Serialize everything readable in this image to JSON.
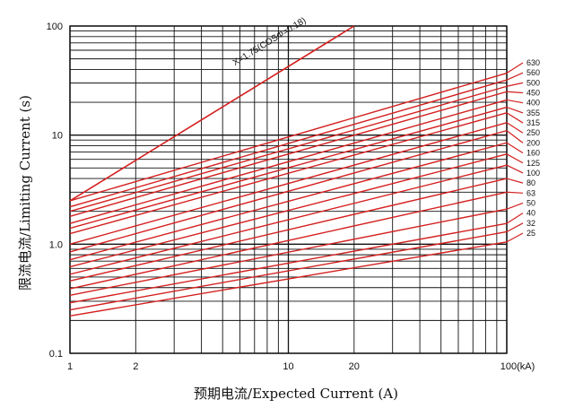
{
  "chart_data": {
    "type": "line",
    "title": "",
    "xlabel": "预期电流/Expected Current (A)",
    "ylabel": "限流电流/Limiting Current (s)",
    "xscale": "log",
    "yscale": "log",
    "xlim": [
      1,
      100
    ],
    "ylim": [
      0.1,
      100
    ],
    "x_tick_labels": [
      "1",
      "2",
      "10",
      "20",
      "100(kA)"
    ],
    "y_tick_labels": [
      "0.1",
      "1.0",
      "10",
      "100"
    ],
    "grid": true,
    "annotation": "X=1.75(COSΦ=0.18)",
    "envelope": {
      "name": "X=1.75(COSΦ=0.18)",
      "x": [
        1,
        20
      ],
      "y": [
        2.5,
        100
      ]
    },
    "series": [
      {
        "name": "630",
        "x": [
          1,
          100
        ],
        "y": [
          2.5,
          37
        ]
      },
      {
        "name": "560",
        "x": [
          1,
          100
        ],
        "y": [
          2.2,
          32
        ]
      },
      {
        "name": "500",
        "x": [
          1,
          100
        ],
        "y": [
          2.0,
          28
        ]
      },
      {
        "name": "450",
        "x": [
          1,
          100
        ],
        "y": [
          1.8,
          25
        ]
      },
      {
        "name": "400",
        "x": [
          1,
          100
        ],
        "y": [
          1.55,
          21
        ]
      },
      {
        "name": "355",
        "x": [
          1,
          100
        ],
        "y": [
          1.4,
          18
        ]
      },
      {
        "name": "315",
        "x": [
          1,
          100
        ],
        "y": [
          1.25,
          16
        ]
      },
      {
        "name": "250",
        "x": [
          1,
          100
        ],
        "y": [
          1.0,
          13
        ]
      },
      {
        "name": "200",
        "x": [
          1,
          100
        ],
        "y": [
          0.85,
          11
        ]
      },
      {
        "name": "160",
        "x": [
          1,
          100
        ],
        "y": [
          0.72,
          8.5
        ]
      },
      {
        "name": "125",
        "x": [
          1,
          100
        ],
        "y": [
          0.62,
          6.7
        ]
      },
      {
        "name": "100",
        "x": [
          1,
          100
        ],
        "y": [
          0.53,
          5.3
        ]
      },
      {
        "name": "80",
        "x": [
          1,
          100
        ],
        "y": [
          0.46,
          4.0
        ]
      },
      {
        "name": "63",
        "x": [
          1,
          100
        ],
        "y": [
          0.39,
          3.0
        ]
      },
      {
        "name": "50",
        "x": [
          1,
          100
        ],
        "y": [
          0.34,
          2.1
        ]
      },
      {
        "name": "40",
        "x": [
          1,
          100
        ],
        "y": [
          0.29,
          1.55
        ]
      },
      {
        "name": "32",
        "x": [
          1,
          100
        ],
        "y": [
          0.25,
          1.3
        ]
      },
      {
        "name": "25",
        "x": [
          1,
          100
        ],
        "y": [
          0.22,
          1.05
        ]
      }
    ],
    "colors": {
      "curves": "#d42020",
      "grid": "#111111"
    }
  }
}
